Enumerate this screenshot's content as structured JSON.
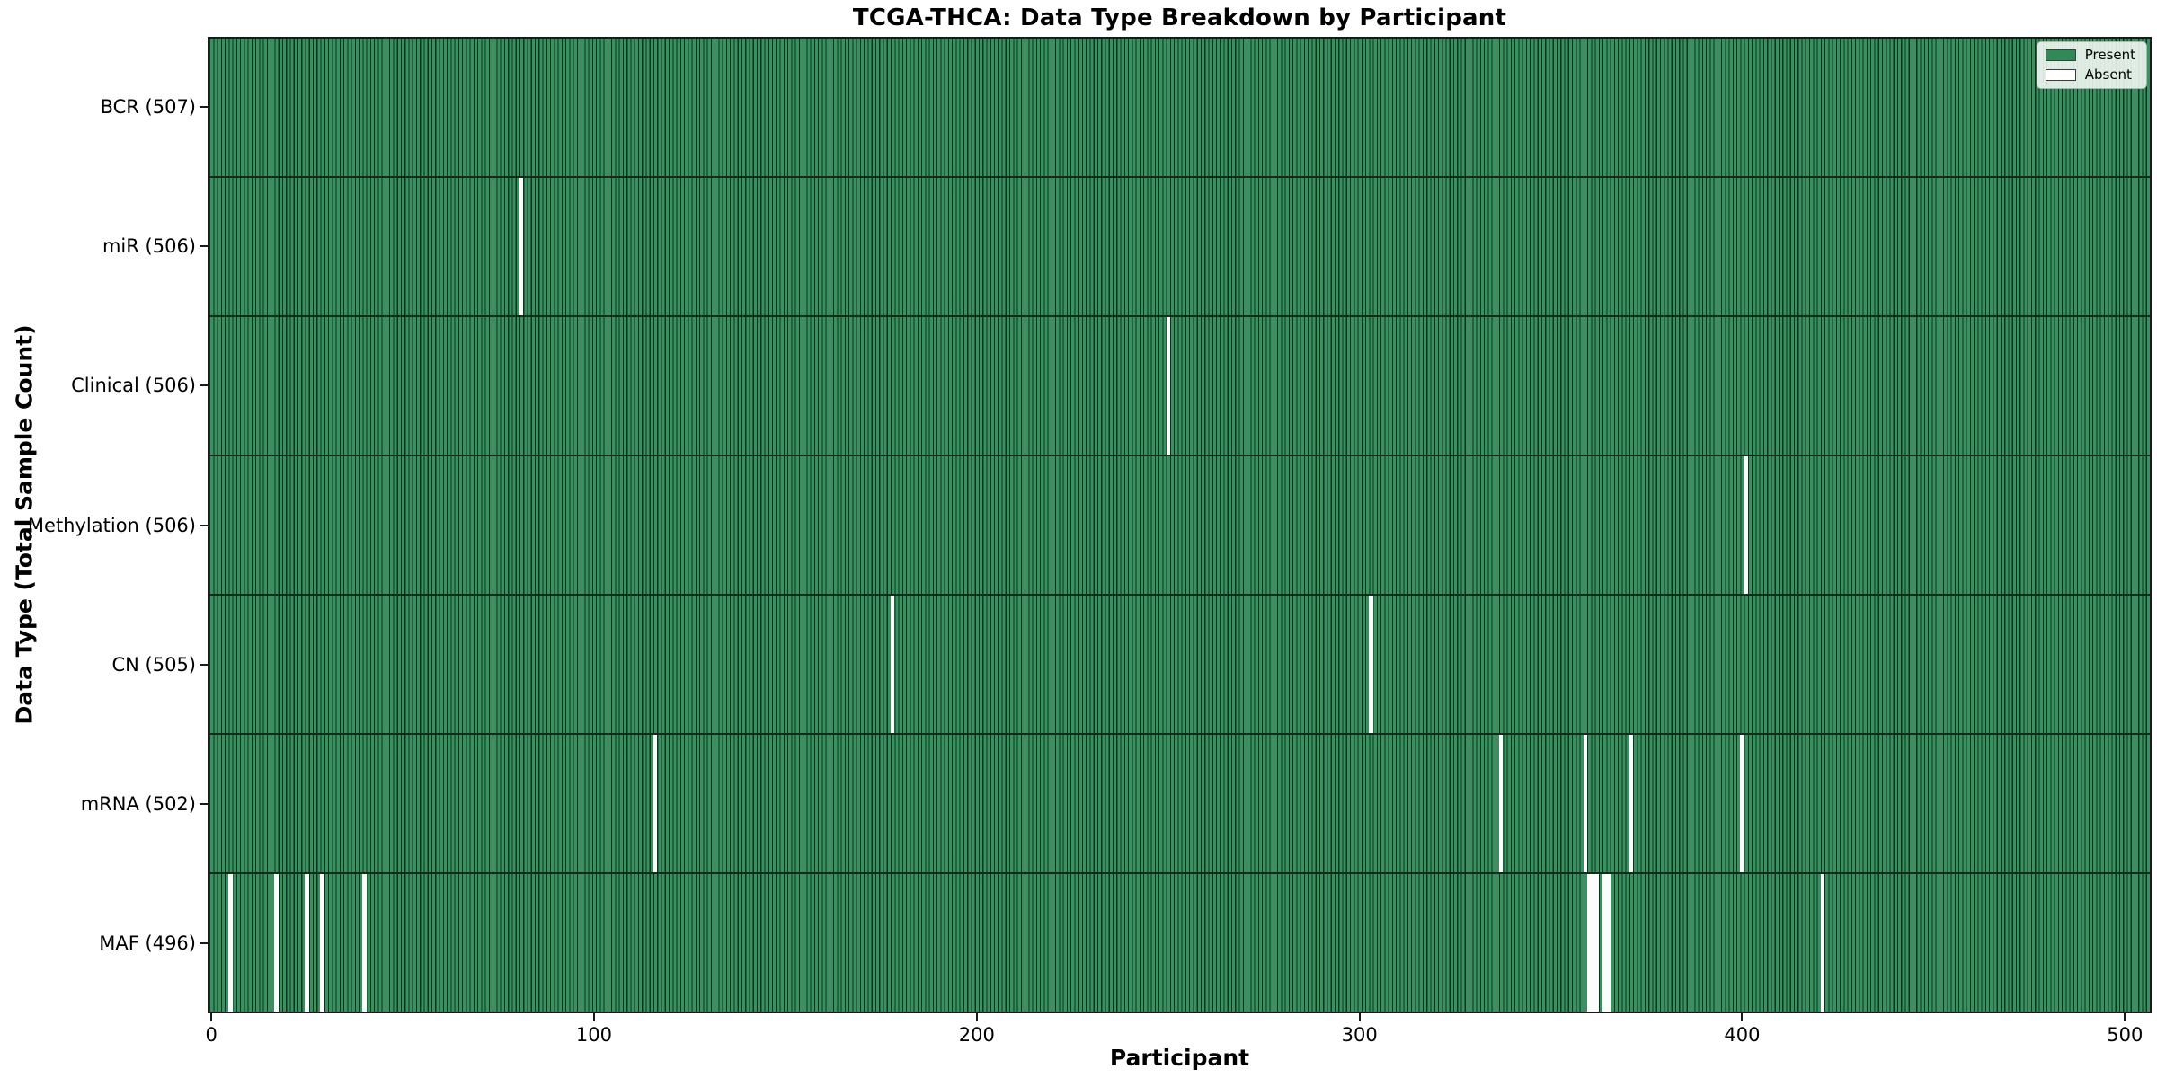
{
  "chart_data": {
    "type": "heatmap",
    "title": "TCGA-THCA: Data Type Breakdown by Participant",
    "xlabel": "Participant",
    "ylabel": "Data Type (Total Sample Count)",
    "x_ticks": [
      0,
      100,
      200,
      300,
      400,
      500
    ],
    "x_range": [
      -0.5,
      506.5
    ],
    "total_participants": 507,
    "grid": false,
    "legend": {
      "position": "upper right",
      "items": [
        {
          "label": "Present",
          "color": "#2e8b57"
        },
        {
          "label": "Absent",
          "color": "#ffffff"
        }
      ]
    },
    "colors": {
      "present_fill": "#37925f",
      "bar_edge": "#11301f",
      "row_divider": "#142b1c",
      "plot_border": "#1a1a1a",
      "absent_fill": "#fcfcfc"
    },
    "rows": [
      {
        "label": "BCR (507)",
        "data_type": "BCR",
        "total": 507,
        "absent_participants": []
      },
      {
        "label": "miR (506)",
        "data_type": "miR",
        "total": 506,
        "absent_participants": [
          81
        ]
      },
      {
        "label": "Clinical (506)",
        "data_type": "Clinical",
        "total": 506,
        "absent_participants": [
          250
        ]
      },
      {
        "label": "Methylation (506)",
        "data_type": "Methylation",
        "total": 506,
        "absent_participants": [
          401
        ]
      },
      {
        "label": "CN (505)",
        "data_type": "CN",
        "total": 505,
        "absent_participants": [
          178,
          303
        ]
      },
      {
        "label": "mRNA (502)",
        "data_type": "mRNA",
        "total": 502,
        "absent_participants": [
          116,
          337,
          359,
          371,
          400
        ]
      },
      {
        "label": "MAF (496)",
        "data_type": "MAF",
        "total": 496,
        "absent_participants": [
          5,
          17,
          25,
          29,
          40,
          360,
          361,
          362,
          364,
          365,
          421
        ]
      }
    ]
  }
}
